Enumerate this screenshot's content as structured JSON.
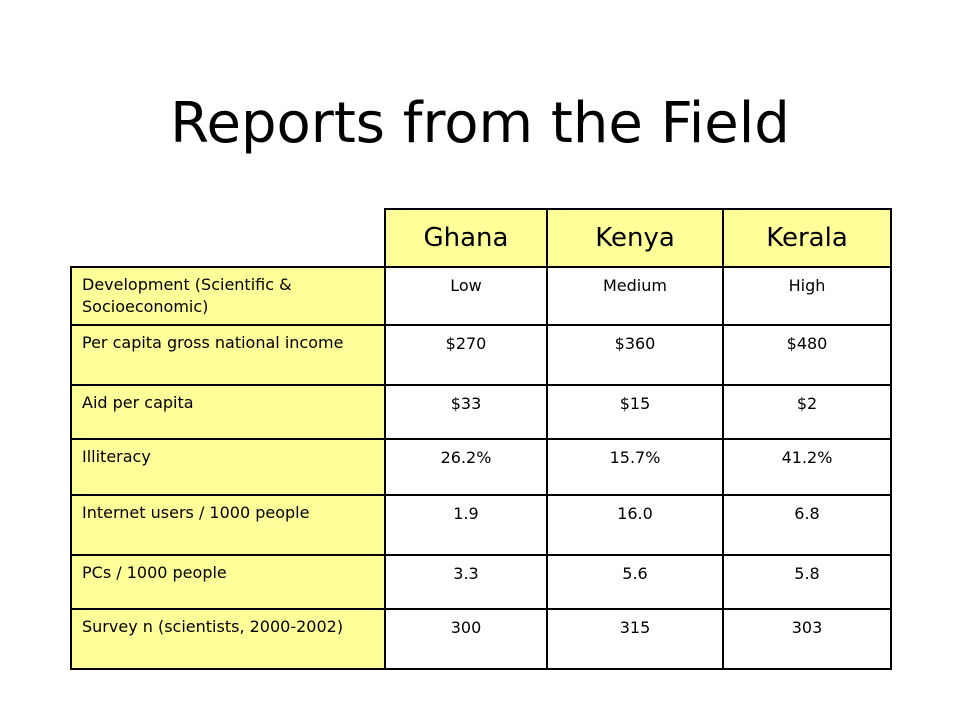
{
  "slide": {
    "title": "Reports from the Field"
  },
  "table": {
    "columns": [
      "Ghana",
      "Kenya",
      "Kerala"
    ],
    "rows": [
      {
        "label": "Development (Scientific & Socioeconomic)",
        "values": [
          "Low",
          "Medium",
          "High"
        ]
      },
      {
        "label": "Per capita gross national income",
        "values": [
          "$270",
          "$360",
          "$480"
        ]
      },
      {
        "label": "Aid per capita",
        "values": [
          "$33",
          "$15",
          "$2"
        ]
      },
      {
        "label": "Illiteracy",
        "values": [
          "26.2%",
          "15.7%",
          "41.2%"
        ]
      },
      {
        "label": "Internet users / 1000 people",
        "values": [
          "1.9",
          "16.0",
          "6.8"
        ]
      },
      {
        "label": "PCs / 1000 people",
        "values": [
          "3.3",
          "5.6",
          "5.8"
        ]
      },
      {
        "label": "Survey n (scientists, 2000-2002)",
        "values": [
          "300",
          "315",
          "303"
        ]
      }
    ]
  },
  "colors": {
    "header_fill": "#ffff99",
    "border": "#000000",
    "background": "#ffffff"
  }
}
